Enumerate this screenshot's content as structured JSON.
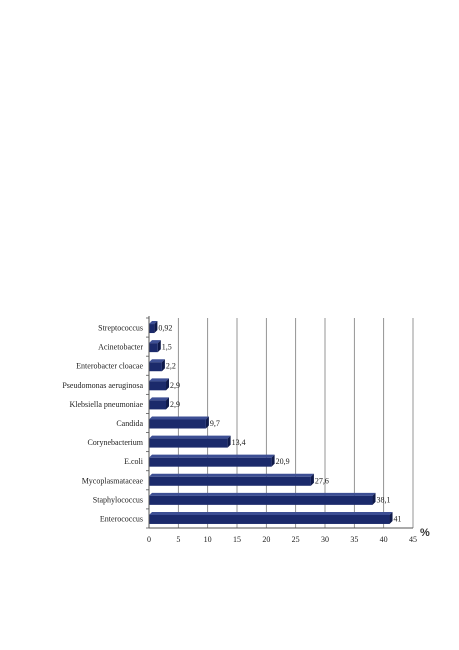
{
  "chart_data": {
    "type": "bar",
    "orientation": "horizontal",
    "categories": [
      "Streptococcus",
      "Acinetobacter",
      "Enterobacter cloacae",
      "Pseudomonas aeruginosa",
      "Klebsiella pneumoniae",
      "Candida",
      "Corynebacterium",
      "E.coli",
      "Mycoplasmataceae",
      "Staphylococcus",
      "Enterococcus"
    ],
    "values": [
      0.92,
      1.5,
      2.2,
      2.9,
      2.9,
      9.7,
      13.4,
      20.9,
      27.6,
      38.1,
      41
    ],
    "value_labels": [
      "0,92",
      "1,5",
      "2,2",
      "2,9",
      "2,9",
      "9,7",
      "13,4",
      "20,9",
      "27,6",
      "38,1",
      "41"
    ],
    "x_ticks": [
      "0",
      "5",
      "10",
      "15",
      "20",
      "25",
      "30",
      "35",
      "40",
      "45"
    ],
    "xlim": [
      0,
      45
    ],
    "x_unit": "%",
    "grid": true,
    "bar_color": "#1b2a6b"
  }
}
